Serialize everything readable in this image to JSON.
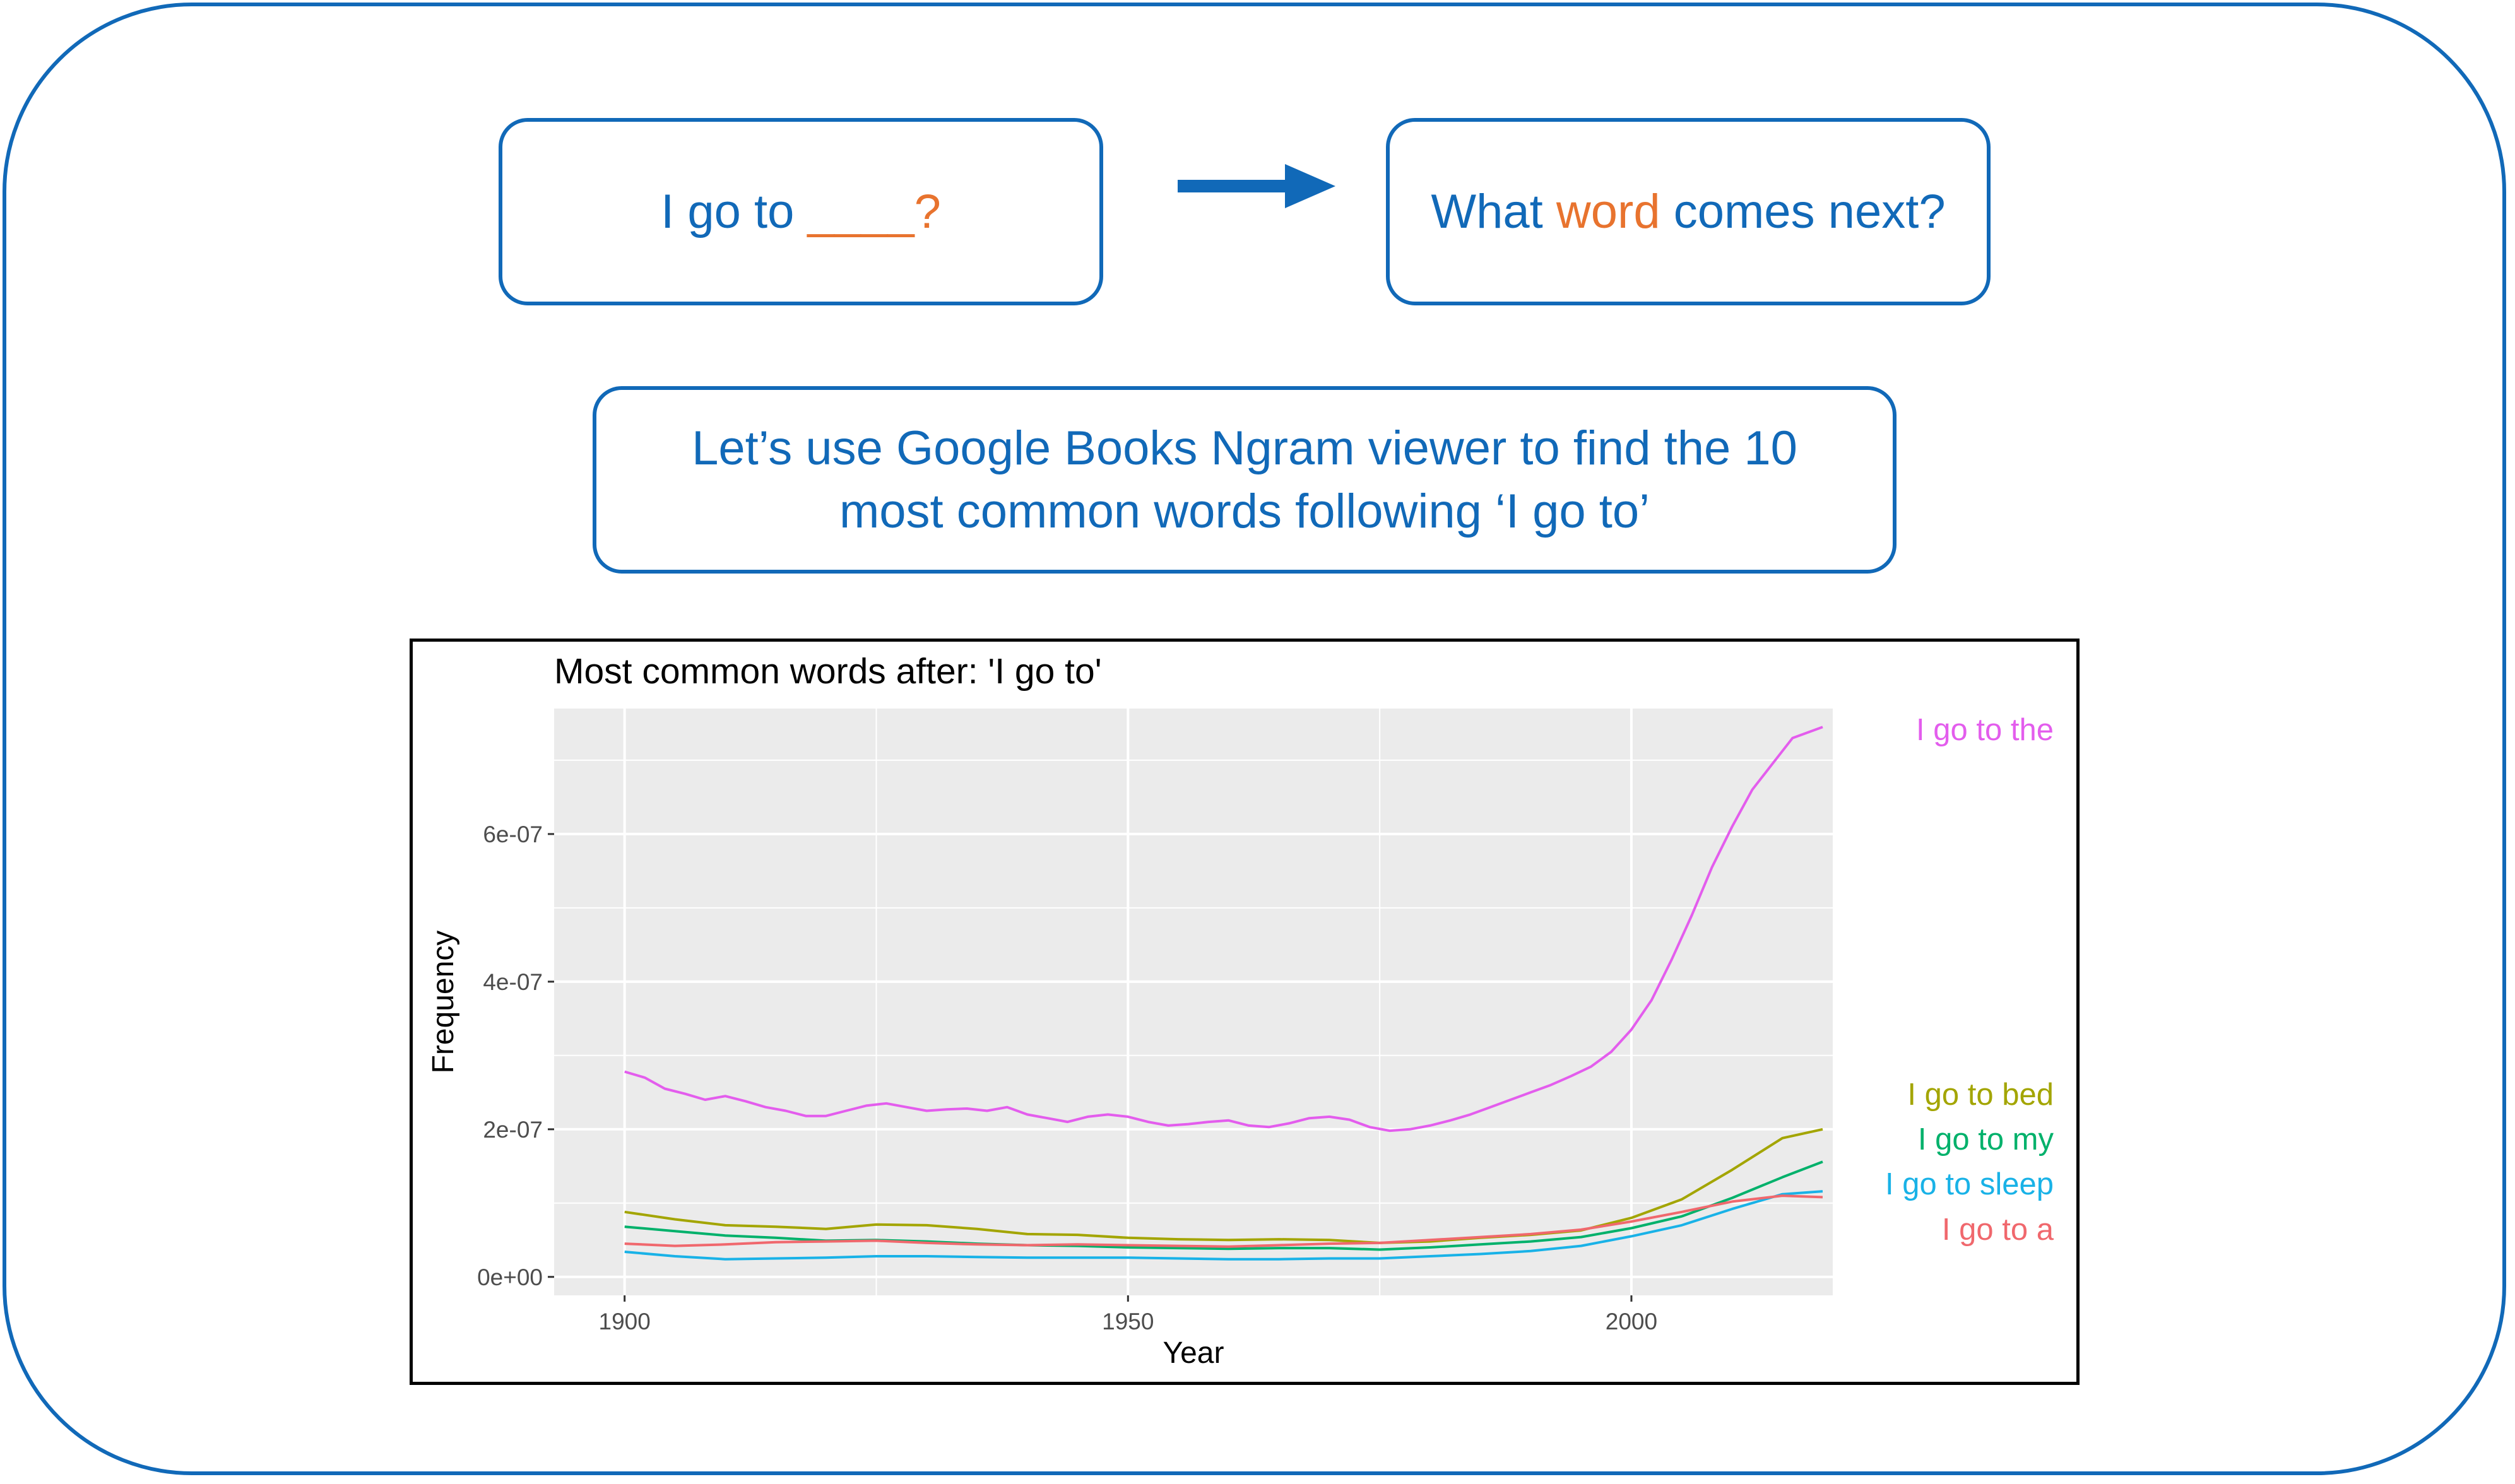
{
  "question_box": {
    "prefix": "I go to ",
    "blank": "____",
    "suffix": "?"
  },
  "answer_box": {
    "prefix": "What ",
    "highlight": "word",
    "suffix": " comes next?"
  },
  "info_box": {
    "line1": "Let’s use Google Books Ngram viewer to find the 10",
    "line2": "most common words following ‘I go to’"
  },
  "colors": {
    "brand": "#1169b8",
    "accent": "#e8732e"
  },
  "chart_data": {
    "type": "line",
    "title": "Most common words after: 'I go to'",
    "xlabel": "Year",
    "ylabel": "Frequency",
    "xlim": [
      1893,
      2020
    ],
    "ylim": [
      -2.5e-08,
      7.7e-07
    ],
    "xticks": [
      1900,
      1950,
      2000
    ],
    "xtick_labels": [
      "1900",
      "1950",
      "2000"
    ],
    "yticks": [
      0,
      2e-07,
      4e-07,
      6e-07
    ],
    "ytick_labels": [
      "0e+00",
      "2e-07",
      "4e-07",
      "6e-07"
    ],
    "grid": true,
    "legend": "direct labels right of plot",
    "series": [
      {
        "name": "I go to the",
        "color": "#e35ded",
        "x": [
          1900,
          1902,
          1904,
          1906,
          1908,
          1910,
          1912,
          1914,
          1916,
          1918,
          1920,
          1922,
          1924,
          1926,
          1928,
          1930,
          1932,
          1934,
          1936,
          1938,
          1940,
          1942,
          1944,
          1946,
          1948,
          1950,
          1952,
          1954,
          1956,
          1958,
          1960,
          1962,
          1964,
          1966,
          1968,
          1970,
          1972,
          1974,
          1976,
          1978,
          1980,
          1982,
          1984,
          1986,
          1988,
          1990,
          1992,
          1994,
          1996,
          1998,
          2000,
          2002,
          2004,
          2006,
          2008,
          2010,
          2012,
          2014,
          2016,
          2019
        ],
        "y": [
          2.78e-07,
          2.7e-07,
          2.55e-07,
          2.48e-07,
          2.4e-07,
          2.45e-07,
          2.38e-07,
          2.3e-07,
          2.25e-07,
          2.18e-07,
          2.18e-07,
          2.25e-07,
          2.32e-07,
          2.35e-07,
          2.3e-07,
          2.25e-07,
          2.27e-07,
          2.28e-07,
          2.25e-07,
          2.3e-07,
          2.2e-07,
          2.15e-07,
          2.1e-07,
          2.17e-07,
          2.2e-07,
          2.17e-07,
          2.1e-07,
          2.05e-07,
          2.07e-07,
          2.1e-07,
          2.12e-07,
          2.05e-07,
          2.03e-07,
          2.08e-07,
          2.15e-07,
          2.17e-07,
          2.13e-07,
          2.03e-07,
          1.98e-07,
          2e-07,
          2.05e-07,
          2.12e-07,
          2.2e-07,
          2.3e-07,
          2.4e-07,
          2.5e-07,
          2.6e-07,
          2.72e-07,
          2.85e-07,
          3.05e-07,
          3.35e-07,
          3.75e-07,
          4.3e-07,
          4.9e-07,
          5.55e-07,
          6.1e-07,
          6.6e-07,
          6.95e-07,
          7.3e-07,
          7.45e-07
        ]
      },
      {
        "name": "I go to bed",
        "color": "#a3a500",
        "x": [
          1900,
          1905,
          1910,
          1915,
          1920,
          1925,
          1930,
          1935,
          1940,
          1945,
          1950,
          1955,
          1960,
          1965,
          1970,
          1975,
          1980,
          1985,
          1990,
          1995,
          2000,
          2005,
          2010,
          2015,
          2019
        ],
        "y": [
          8.8e-08,
          7.8e-08,
          7e-08,
          6.8e-08,
          6.5e-08,
          7.1e-08,
          7e-08,
          6.5e-08,
          5.8e-08,
          5.7e-08,
          5.3e-08,
          5.1e-08,
          5e-08,
          5.1e-08,
          5e-08,
          4.6e-08,
          4.8e-08,
          5.3e-08,
          5.7e-08,
          6.3e-08,
          8e-08,
          1.05e-07,
          1.45e-07,
          1.88e-07,
          2e-07
        ]
      },
      {
        "name": "I go to my",
        "color": "#00b16b",
        "x": [
          1900,
          1905,
          1910,
          1915,
          1920,
          1925,
          1930,
          1935,
          1940,
          1945,
          1950,
          1955,
          1960,
          1965,
          1970,
          1975,
          1980,
          1985,
          1990,
          1995,
          2000,
          2005,
          2010,
          2015,
          2019
        ],
        "y": [
          6.8e-08,
          6.2e-08,
          5.6e-08,
          5.3e-08,
          4.9e-08,
          5e-08,
          4.8e-08,
          4.5e-08,
          4.3e-08,
          4.2e-08,
          4e-08,
          3.9e-08,
          3.8e-08,
          3.9e-08,
          3.9e-08,
          3.7e-08,
          4e-08,
          4.4e-08,
          4.8e-08,
          5.4e-08,
          6.6e-08,
          8.2e-08,
          1.07e-07,
          1.35e-07,
          1.56e-07
        ]
      },
      {
        "name": "I go to sleep",
        "color": "#19b2e7",
        "x": [
          1900,
          1905,
          1910,
          1915,
          1920,
          1925,
          1930,
          1935,
          1940,
          1945,
          1950,
          1955,
          1960,
          1965,
          1970,
          1975,
          1980,
          1985,
          1990,
          1995,
          2000,
          2005,
          2010,
          2015,
          2019
        ],
        "y": [
          3.4e-08,
          2.8e-08,
          2.4e-08,
          2.5e-08,
          2.6e-08,
          2.8e-08,
          2.8e-08,
          2.7e-08,
          2.6e-08,
          2.6e-08,
          2.6e-08,
          2.5e-08,
          2.4e-08,
          2.4e-08,
          2.5e-08,
          2.5e-08,
          2.8e-08,
          3.1e-08,
          3.5e-08,
          4.2e-08,
          5.5e-08,
          7e-08,
          9.2e-08,
          1.12e-07,
          1.16e-07
        ]
      },
      {
        "name": "I go to a",
        "color": "#f0686d",
        "x": [
          1900,
          1905,
          1910,
          1915,
          1920,
          1925,
          1930,
          1935,
          1940,
          1945,
          1950,
          1955,
          1960,
          1965,
          1970,
          1975,
          1980,
          1985,
          1990,
          1995,
          2000,
          2005,
          2010,
          2015,
          2019
        ],
        "y": [
          4.5e-08,
          4.2e-08,
          4.4e-08,
          4.7e-08,
          4.8e-08,
          4.9e-08,
          4.6e-08,
          4.4e-08,
          4.3e-08,
          4.4e-08,
          4.3e-08,
          4.2e-08,
          4.1e-08,
          4.3e-08,
          4.5e-08,
          4.6e-08,
          5e-08,
          5.4e-08,
          5.8e-08,
          6.4e-08,
          7.5e-08,
          8.8e-08,
          1.02e-07,
          1.1e-07,
          1.08e-07
        ]
      }
    ]
  }
}
